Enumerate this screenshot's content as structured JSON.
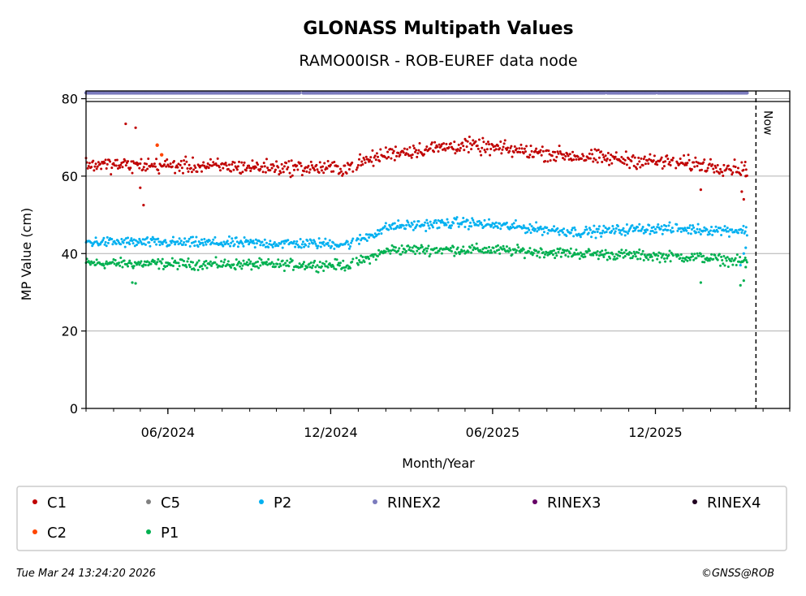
{
  "chart_data": {
    "type": "scatter",
    "title": "GLONASS Multipath Values",
    "subtitle": "RAMO00ISR - ROB-EUREF data node",
    "xlabel": "Month/Year",
    "ylabel": "MP Value (cm)",
    "ylim": [
      0,
      82
    ],
    "xlim": [
      "2024-03-01",
      "2026-05-01"
    ],
    "y_ticks": [
      0,
      20,
      40,
      60,
      80
    ],
    "x_ticks": [
      {
        "date": "2024-06-01",
        "label": "06/2024"
      },
      {
        "date": "2024-12-01",
        "label": "12/2024"
      },
      {
        "date": "2025-06-01",
        "label": "06/2025"
      },
      {
        "date": "2025-12-01",
        "label": "12/2025"
      }
    ],
    "grid": "horizontal",
    "now": {
      "date": "2026-03-24",
      "label": "Now"
    },
    "data_range": [
      "2024-03-01",
      "2026-03-14"
    ],
    "series": [
      {
        "name": "C1",
        "color": "#c00000",
        "levels": [
          [
            0,
            63
          ],
          [
            0.39,
            62
          ],
          [
            0.46,
            66
          ],
          [
            0.57,
            68
          ],
          [
            0.75,
            65
          ],
          [
            0.93,
            63
          ],
          [
            0.985,
            62
          ]
        ],
        "jitter": 1.6,
        "outliers": [
          [
            0.06,
            73.5
          ],
          [
            0.075,
            72.5
          ],
          [
            0.082,
            57
          ],
          [
            0.087,
            52.5
          ],
          [
            0.93,
            56.5
          ],
          [
            0.992,
            56
          ],
          [
            0.995,
            54
          ],
          [
            0.998,
            60
          ]
        ]
      },
      {
        "name": "C2",
        "color": "#ff4500",
        "points": [
          [
            "2024-05-20",
            68
          ],
          [
            "2024-05-25",
            65.5
          ]
        ]
      },
      {
        "name": "C5",
        "color": "#808080",
        "points": []
      },
      {
        "name": "P1",
        "color": "#00b050",
        "levels": [
          [
            0,
            37.5
          ],
          [
            0.4,
            37
          ],
          [
            0.46,
            41
          ],
          [
            0.6,
            41
          ],
          [
            0.75,
            40
          ],
          [
            0.93,
            39
          ],
          [
            0.985,
            38
          ]
        ],
        "jitter": 1.1,
        "outliers": [
          [
            0.07,
            32.5
          ],
          [
            0.075,
            32.3
          ],
          [
            0.93,
            32.5
          ],
          [
            0.99,
            31.8
          ],
          [
            0.995,
            33
          ],
          [
            0.998,
            36.5
          ]
        ]
      },
      {
        "name": "P2",
        "color": "#00b0f0",
        "levels": [
          [
            0,
            43
          ],
          [
            0.4,
            42.5
          ],
          [
            0.46,
            47
          ],
          [
            0.57,
            48
          ],
          [
            0.75,
            45.5
          ],
          [
            0.85,
            46.5
          ],
          [
            0.985,
            46
          ]
        ],
        "jitter": 1.1,
        "outliers": [
          [
            0.99,
            37
          ],
          [
            0.995,
            40
          ],
          [
            0.998,
            41.5
          ]
        ]
      },
      {
        "name": "RINEX2",
        "color": "#7b7bbd",
        "constant": 81.5
      },
      {
        "name": "RINEX3",
        "color": "#660066",
        "points": []
      },
      {
        "name": "RINEX4",
        "color": "#200020",
        "points": []
      }
    ],
    "legend": {
      "placement": "below",
      "entries": [
        {
          "name": "C1",
          "color": "#c00000"
        },
        {
          "name": "C5",
          "color": "#808080"
        },
        {
          "name": "P2",
          "color": "#00b0f0"
        },
        {
          "name": "RINEX2",
          "color": "#7b7bbd"
        },
        {
          "name": "RINEX3",
          "color": "#660066"
        },
        {
          "name": "RINEX4",
          "color": "#200020"
        },
        {
          "name": "C2",
          "color": "#ff4500"
        },
        {
          "name": "P1",
          "color": "#00b050"
        }
      ]
    }
  },
  "footer": {
    "timestamp": "Tue Mar 24 13:24:20 2026",
    "copyright": "©GNSS@ROB"
  }
}
